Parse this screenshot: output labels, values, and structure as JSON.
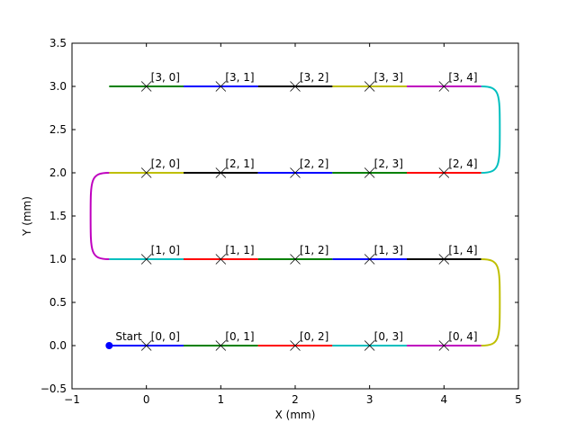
{
  "chart_data": {
    "type": "line",
    "title": "",
    "xlabel": "X (mm)",
    "ylabel": "Y (mm)",
    "xlim": [
      -1,
      5
    ],
    "ylim": [
      -0.5,
      3.5
    ],
    "xticks": [
      "−1",
      "0",
      "1",
      "2",
      "3",
      "4",
      "5"
    ],
    "xtick_values": [
      -1,
      0,
      1,
      2,
      3,
      4,
      5
    ],
    "yticks": [
      "−0.5",
      "0.0",
      "0.5",
      "1.0",
      "1.5",
      "2.0",
      "2.5",
      "3.0",
      "3.5"
    ],
    "ytick_values": [
      -0.5,
      0,
      0.5,
      1,
      1.5,
      2,
      2.5,
      3,
      3.5
    ],
    "grid": false,
    "start": {
      "label": "Start",
      "x": -0.5,
      "y": 0.0,
      "color": "#0000ff"
    },
    "segments": [
      {
        "x": [
          -0.5,
          0.5
        ],
        "y": [
          0,
          0
        ],
        "color": "#0000ff"
      },
      {
        "x": [
          0.5,
          1.5
        ],
        "y": [
          0,
          0
        ],
        "color": "#008000"
      },
      {
        "x": [
          1.5,
          2.5
        ],
        "y": [
          0,
          0
        ],
        "color": "#ff0000"
      },
      {
        "x": [
          2.5,
          3.5
        ],
        "y": [
          0,
          0
        ],
        "color": "#00bfbf"
      },
      {
        "x": [
          3.5,
          4.5
        ],
        "y": [
          0,
          0
        ],
        "color": "#bf00bf"
      },
      {
        "x": [
          4.5,
          3.5
        ],
        "y": [
          1,
          1
        ],
        "color": "#000000"
      },
      {
        "x": [
          3.5,
          2.5
        ],
        "y": [
          1,
          1
        ],
        "color": "#0000ff"
      },
      {
        "x": [
          2.5,
          1.5
        ],
        "y": [
          1,
          1
        ],
        "color": "#008000"
      },
      {
        "x": [
          1.5,
          0.5
        ],
        "y": [
          1,
          1
        ],
        "color": "#ff0000"
      },
      {
        "x": [
          0.5,
          -0.5
        ],
        "y": [
          1,
          1
        ],
        "color": "#00bfbf"
      },
      {
        "x": [
          -0.5,
          0.5
        ],
        "y": [
          2,
          2
        ],
        "color": "#bfbf00"
      },
      {
        "x": [
          0.5,
          1.5
        ],
        "y": [
          2,
          2
        ],
        "color": "#000000"
      },
      {
        "x": [
          1.5,
          2.5
        ],
        "y": [
          2,
          2
        ],
        "color": "#0000ff"
      },
      {
        "x": [
          2.5,
          3.5
        ],
        "y": [
          2,
          2
        ],
        "color": "#008000"
      },
      {
        "x": [
          3.5,
          4.5
        ],
        "y": [
          2,
          2
        ],
        "color": "#ff0000"
      },
      {
        "x": [
          4.5,
          3.5
        ],
        "y": [
          3,
          3
        ],
        "color": "#bf00bf"
      },
      {
        "x": [
          3.5,
          2.5
        ],
        "y": [
          3,
          3
        ],
        "color": "#bfbf00"
      },
      {
        "x": [
          2.5,
          1.5
        ],
        "y": [
          3,
          3
        ],
        "color": "#000000"
      },
      {
        "x": [
          1.5,
          0.5
        ],
        "y": [
          3,
          3
        ],
        "color": "#0000ff"
      },
      {
        "x": [
          0.5,
          -0.5
        ],
        "y": [
          3,
          3
        ],
        "color": "#008000"
      }
    ],
    "turns": [
      {
        "side": "right",
        "y_from": 0,
        "y_to": 1,
        "x_start": 4.5,
        "x_apex": 4.75,
        "color": "#bfbf00"
      },
      {
        "side": "left",
        "y_from": 1,
        "y_to": 2,
        "x_start": -0.5,
        "x_apex": -0.75,
        "color": "#bf00bf"
      },
      {
        "side": "right",
        "y_from": 2,
        "y_to": 3,
        "x_start": 4.5,
        "x_apex": 4.75,
        "color": "#00bfbf"
      }
    ],
    "points": [
      {
        "label": "[0, 0]",
        "x": 0,
        "y": 0
      },
      {
        "label": "[0, 1]",
        "x": 1,
        "y": 0
      },
      {
        "label": "[0, 2]",
        "x": 2,
        "y": 0
      },
      {
        "label": "[0, 3]",
        "x": 3,
        "y": 0
      },
      {
        "label": "[0, 4]",
        "x": 4,
        "y": 0
      },
      {
        "label": "[1, 0]",
        "x": 0,
        "y": 1
      },
      {
        "label": "[1, 1]",
        "x": 1,
        "y": 1
      },
      {
        "label": "[1, 2]",
        "x": 2,
        "y": 1
      },
      {
        "label": "[1, 3]",
        "x": 3,
        "y": 1
      },
      {
        "label": "[1, 4]",
        "x": 4,
        "y": 1
      },
      {
        "label": "[2, 0]",
        "x": 0,
        "y": 2
      },
      {
        "label": "[2, 1]",
        "x": 1,
        "y": 2
      },
      {
        "label": "[2, 2]",
        "x": 2,
        "y": 2
      },
      {
        "label": "[2, 3]",
        "x": 3,
        "y": 2
      },
      {
        "label": "[2, 4]",
        "x": 4,
        "y": 2
      },
      {
        "label": "[3, 0]",
        "x": 0,
        "y": 3
      },
      {
        "label": "[3, 1]",
        "x": 1,
        "y": 3
      },
      {
        "label": "[3, 2]",
        "x": 2,
        "y": 3
      },
      {
        "label": "[3, 3]",
        "x": 3,
        "y": 3
      },
      {
        "label": "[3, 4]",
        "x": 4,
        "y": 3
      }
    ]
  }
}
